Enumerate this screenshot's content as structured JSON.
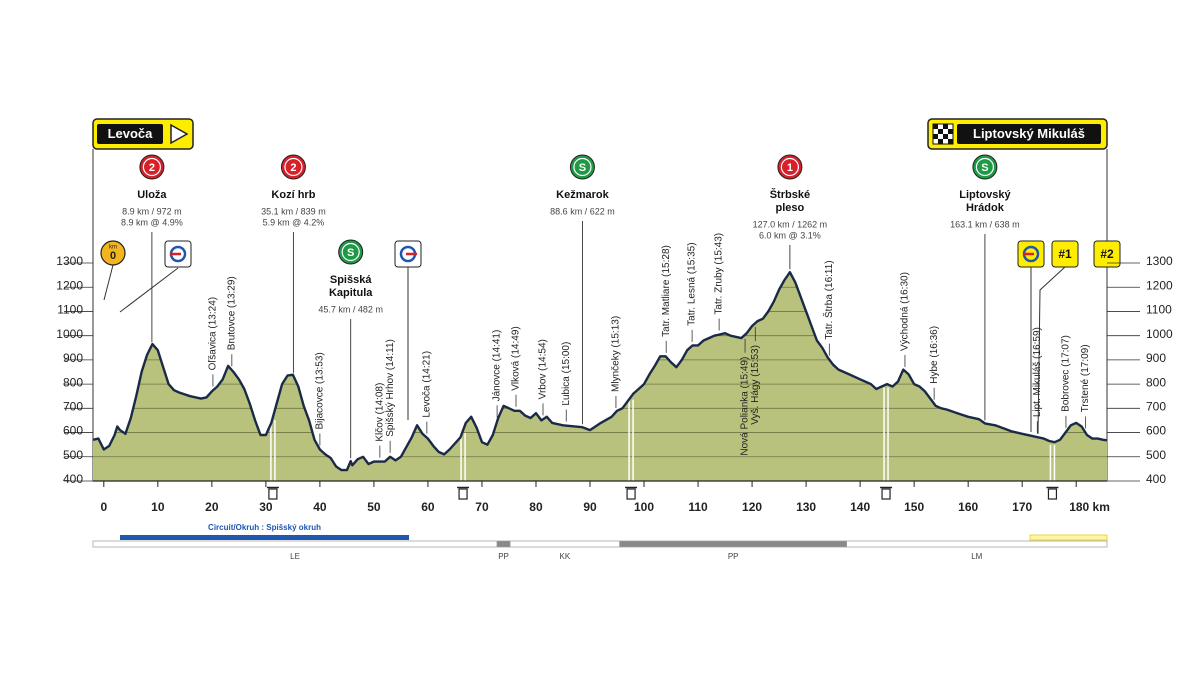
{
  "start": "Levoča",
  "finish": "Liptovský Mikuláš",
  "km_badge": {
    "unit": "km",
    "value": "0"
  },
  "sprints": [
    "#1",
    "#2"
  ],
  "chart_data": {
    "type": "area",
    "color": "#b9c27c",
    "line_color": "#1b2a47",
    "grid": true,
    "xlim": [
      -2,
      185.7
    ],
    "ylim": [
      400,
      1300
    ],
    "yticks": [
      400,
      500,
      600,
      700,
      800,
      900,
      1000,
      1100,
      1200,
      1300
    ],
    "xticks": [
      0,
      10,
      20,
      30,
      40,
      50,
      60,
      70,
      80,
      90,
      100,
      110,
      120,
      130,
      140,
      150,
      160,
      170,
      {
        "value": 180,
        "label": "180 km"
      }
    ],
    "x": [
      -2,
      -1,
      0,
      1,
      2,
      2.5,
      3,
      4,
      5,
      6,
      7,
      8,
      9,
      10,
      11,
      12,
      13,
      14,
      16,
      18,
      19,
      20,
      21,
      22,
      23,
      24,
      25,
      26,
      27,
      28,
      29,
      30,
      31,
      32,
      33,
      34,
      35,
      36,
      37,
      38,
      39,
      40,
      41,
      42,
      43,
      44,
      45,
      45.7,
      46,
      47,
      48,
      49,
      50,
      52,
      53,
      54,
      55,
      56,
      57,
      58,
      59,
      60,
      61,
      62,
      63,
      64,
      66,
      67,
      68,
      69,
      70,
      71,
      72,
      73,
      74,
      75,
      76,
      77,
      78,
      79,
      80,
      81,
      82,
      83,
      85,
      88.6,
      90,
      92,
      94,
      95,
      96,
      97,
      98,
      99,
      100,
      101,
      102,
      103,
      104,
      105,
      106,
      107,
      108,
      109,
      110,
      111,
      112,
      113,
      114,
      115,
      116,
      118,
      119,
      120,
      121,
      122,
      123,
      124,
      125,
      126,
      127,
      128,
      129,
      130,
      131,
      132,
      133,
      134,
      135,
      136,
      138,
      140,
      142,
      143,
      144,
      145,
      146,
      147,
      148,
      149,
      150,
      151,
      152,
      153,
      154,
      155,
      156,
      158,
      160,
      162,
      163.1,
      165,
      168,
      170,
      172,
      174,
      175,
      176,
      177,
      178,
      179,
      180,
      181,
      182,
      183,
      184,
      185,
      185.7
    ],
    "values": [
      570,
      575,
      530,
      545,
      590,
      625,
      610,
      595,
      660,
      750,
      850,
      920,
      965,
      940,
      870,
      800,
      775,
      765,
      750,
      740,
      745,
      770,
      790,
      820,
      875,
      850,
      820,
      780,
      720,
      650,
      590,
      590,
      640,
      720,
      800,
      835,
      839,
      790,
      710,
      650,
      570,
      530,
      510,
      495,
      460,
      445,
      445,
      482,
      465,
      490,
      500,
      470,
      480,
      480,
      500,
      485,
      500,
      540,
      580,
      630,
      595,
      575,
      545,
      520,
      510,
      530,
      580,
      640,
      665,
      620,
      560,
      550,
      590,
      660,
      710,
      700,
      690,
      690,
      670,
      660,
      680,
      650,
      665,
      640,
      630,
      622,
      610,
      640,
      665,
      690,
      700,
      730,
      760,
      780,
      800,
      840,
      875,
      915,
      915,
      890,
      870,
      900,
      940,
      960,
      960,
      980,
      990,
      1000,
      1005,
      1010,
      1000,
      990,
      1010,
      1040,
      1060,
      1070,
      1100,
      1140,
      1190,
      1230,
      1262,
      1220,
      1160,
      1100,
      1040,
      980,
      950,
      910,
      880,
      860,
      840,
      820,
      800,
      780,
      790,
      800,
      790,
      810,
      860,
      840,
      800,
      790,
      770,
      740,
      710,
      700,
      695,
      680,
      665,
      655,
      638,
      630,
      605,
      595,
      585,
      575,
      565,
      560,
      570,
      600,
      630,
      640,
      625,
      590,
      575,
      575,
      570,
      568
    ],
    "climbs": [
      {
        "category": "2",
        "color": "#d7202a",
        "x": 8.9,
        "name": [
          "Uloža"
        ],
        "info": [
          "8.9 km / 972 m",
          "8.9 km @ 4.9%"
        ]
      },
      {
        "category": "2",
        "color": "#d7202a",
        "x": 35.1,
        "name": [
          "Kozí hrb"
        ],
        "info": [
          "35.1 km / 839 m",
          "5.9 km @ 4.2%"
        ]
      },
      {
        "category": "S",
        "color": "#1e9a46",
        "x": 45.7,
        "name": [
          "Spišská",
          "Kapitula"
        ],
        "info": [
          "45.7 km / 482 m"
        ]
      },
      {
        "category": "S",
        "color": "#1e9a46",
        "x": 88.6,
        "name": [
          "Kežmarok"
        ],
        "info": [
          "88.6 km / 622 m"
        ]
      },
      {
        "category": "1",
        "color": "#d7202a",
        "x": 127,
        "name": [
          "Štrbské",
          "pleso"
        ],
        "info": [
          "127.0 km / 1262 m",
          "6.0 km @ 3.1%"
        ]
      },
      {
        "category": "S",
        "color": "#1e9a46",
        "x": 163.1,
        "name": [
          "Liptovský",
          "Hrádok"
        ],
        "info": [
          "163.1 km / 638 m"
        ]
      }
    ],
    "waypoints": [
      {
        "label": "Oľšavica (13:24)",
        "x": 20.2
      },
      {
        "label": "Brutovce (13:29)",
        "x": 23.7
      },
      {
        "label": "Bijacovce (13:53)",
        "x": 40
      },
      {
        "label": "Klčov (14:08)",
        "x": 51.1
      },
      {
        "label": "Spišský Hrhov (14:11)",
        "x": 53
      },
      {
        "label": "Levoča (14:21)",
        "x": 59.8
      },
      {
        "label": "Jánovce (14:41)",
        "x": 72.8
      },
      {
        "label": "Vlková (14:49)",
        "x": 76.3
      },
      {
        "label": "Vrbov (14:54)",
        "x": 81.3
      },
      {
        "label": "Ľubica (15:00)",
        "x": 85.6
      },
      {
        "label": "Mlynčeky (15:13)",
        "x": 94.8
      },
      {
        "label": "Tatr. Matliare (15:28)",
        "x": 104.1
      },
      {
        "label": "Tatr. Lesná (15:35)",
        "x": 108.9
      },
      {
        "label": "Tatr. Zruby (15:43)",
        "x": 113.9
      },
      {
        "label": "Nová Polianka (15:49)",
        "x": 118.7,
        "below": true
      },
      {
        "label": "Vyš. Hágy (15:53)",
        "x": 120.6,
        "below": true
      },
      {
        "label": "Tatr. Štrba (16:11)",
        "x": 134.3
      },
      {
        "label": "Východná (16:30)",
        "x": 148.3
      },
      {
        "label": "Hybe (16:36)",
        "x": 153.7
      },
      {
        "label": "Lipt. Mikuláš (16:59)",
        "x": 172.8
      },
      {
        "label": "Bobrovec (17:07)",
        "x": 178.1
      },
      {
        "label": "Trstené (17:09)",
        "x": 181.7
      }
    ],
    "feed_zones": [
      31.3,
      66.5,
      97.6,
      144.8,
      175.6
    ],
    "circuit": {
      "label": "Circuit/Okruh : Spišský okruh",
      "from": 3,
      "to": 56.5,
      "color": "#1f56b0"
    },
    "zones": [
      {
        "label": "LE",
        "from": -2,
        "to": 72.8,
        "color": "#ffffff"
      },
      {
        "label": "PP",
        "from": 72.8,
        "to": 75.2,
        "color": "#8a8a8a"
      },
      {
        "label": "KK",
        "from": 75.2,
        "to": 95.5,
        "color": "#ffffff"
      },
      {
        "label": "PP",
        "from": 95.5,
        "to": 137.5,
        "color": "#8a8a8a"
      },
      {
        "label": "LM",
        "from": 137.5,
        "to": 185.7,
        "color": "#ffffff"
      }
    ]
  }
}
